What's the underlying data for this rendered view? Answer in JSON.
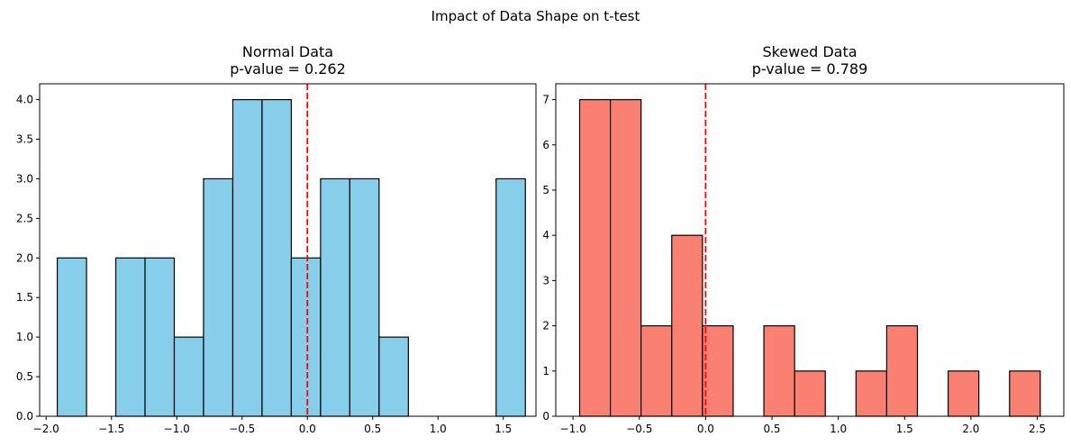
{
  "suptitle": "Impact of Data Shape on t-test",
  "chart_data": [
    {
      "type": "bar",
      "title": "Normal Data",
      "subtitle": "p-value = 0.262",
      "xlabel": "",
      "ylabel": "",
      "bin_edges": [
        -1.915,
        -1.691,
        -1.467,
        -1.243,
        -1.019,
        -0.795,
        -0.571,
        -0.347,
        -0.123,
        0.101,
        0.325,
        0.549,
        0.773,
        0.997,
        1.221,
        1.445,
        1.669
      ],
      "values": [
        2,
        0,
        2,
        2,
        1,
        3,
        4,
        4,
        2,
        3,
        3,
        1,
        0,
        0,
        0,
        3
      ],
      "bar_color": "#87ceeb",
      "edge_color": "#000000",
      "reference_line": {
        "x": 0.0,
        "color": "#ff0000",
        "style": "dashed"
      },
      "xlim": [
        -2.05,
        1.75
      ],
      "ylim": [
        0,
        4.2
      ],
      "xticks": [
        -2.0,
        -1.5,
        -1.0,
        -0.5,
        0.0,
        0.5,
        1.0,
        1.5
      ],
      "xtick_labels": [
        "−2.0",
        "−1.5",
        "−1.0",
        "−0.5",
        "0.0",
        "0.5",
        "1.0",
        "1.5"
      ],
      "yticks": [
        0,
        0.5,
        1.0,
        1.5,
        2.0,
        2.5,
        3.0,
        3.5,
        4.0
      ],
      "ytick_labels": [
        "0.0",
        "0.5",
        "1.0",
        "1.5",
        "2.0",
        "2.5",
        "3.0",
        "3.5",
        "4.0"
      ],
      "grid": false
    },
    {
      "type": "bar",
      "title": "Skewed Data",
      "subtitle": "p-value = 0.789",
      "xlabel": "",
      "ylabel": "",
      "bin_edges": [
        -0.95,
        -0.7185,
        -0.487,
        -0.2555,
        -0.024,
        0.2075,
        0.439,
        0.6705,
        0.902,
        1.1335,
        1.365,
        1.5965,
        1.828,
        2.0595,
        2.291,
        2.5225
      ],
      "values": [
        7,
        7,
        2,
        4,
        2,
        0,
        2,
        1,
        0,
        1,
        2,
        0,
        1,
        0,
        1
      ],
      "bar_color": "#fa8072",
      "edge_color": "#000000",
      "reference_line": {
        "x": 0.0,
        "color": "#ff0000",
        "style": "dashed"
      },
      "xlim": [
        -1.13,
        2.7
      ],
      "ylim": [
        0,
        7.35
      ],
      "xticks": [
        -1.0,
        -0.5,
        0.0,
        0.5,
        1.0,
        1.5,
        2.0,
        2.5
      ],
      "xtick_labels": [
        "−1.0",
        "−0.5",
        "0.0",
        "0.5",
        "1.0",
        "1.5",
        "2.0",
        "2.5"
      ],
      "yticks": [
        0,
        1,
        2,
        3,
        4,
        5,
        6,
        7
      ],
      "ytick_labels": [
        "0",
        "1",
        "2",
        "3",
        "4",
        "5",
        "6",
        "7"
      ],
      "grid": false
    }
  ]
}
